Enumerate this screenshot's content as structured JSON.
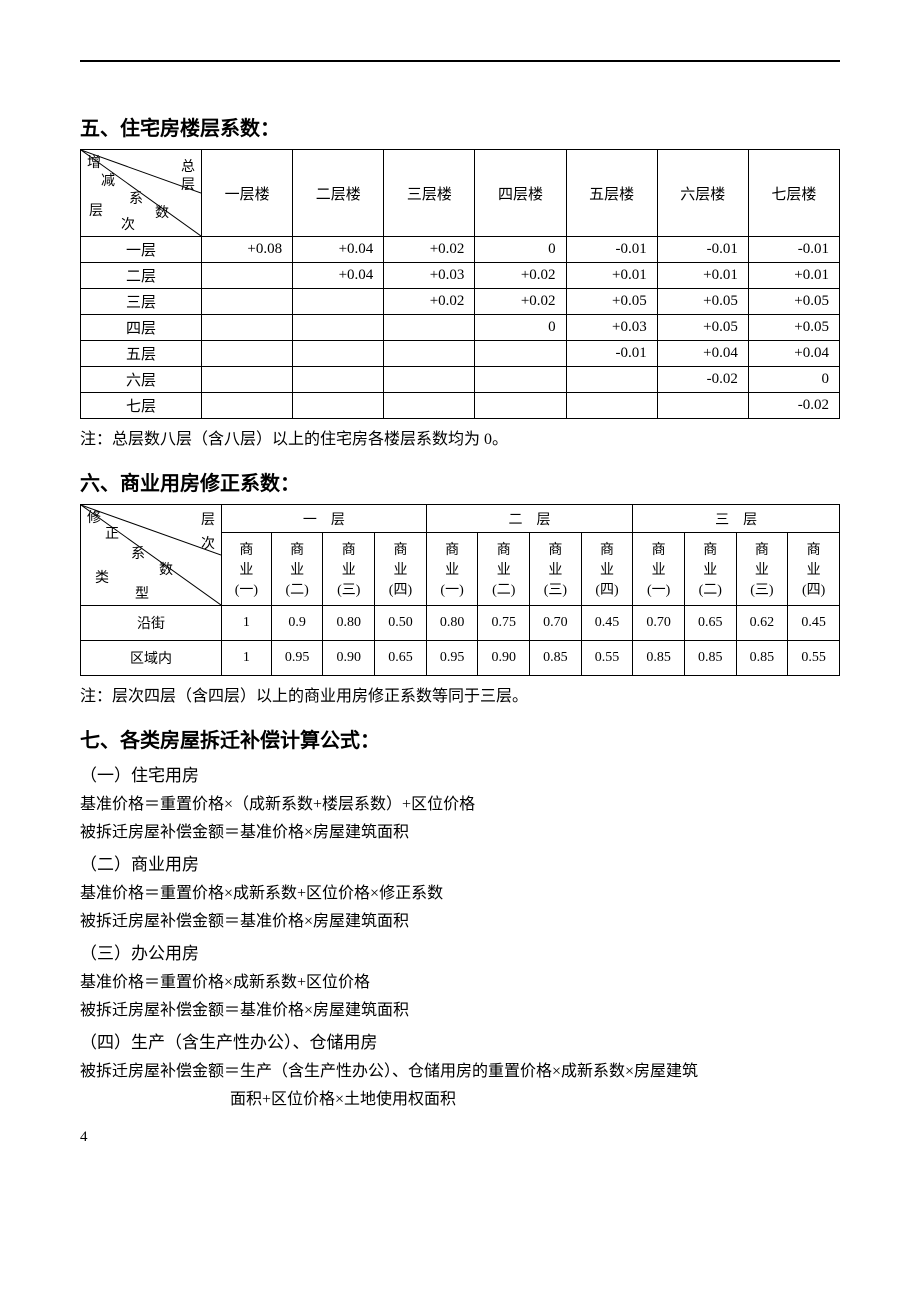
{
  "section5": {
    "title": "五、住宅房楼层系数：",
    "diag": {
      "a": "增减系数",
      "b": "总层数",
      "c": "层次"
    },
    "cols": [
      "一层楼",
      "二层楼",
      "三层楼",
      "四层楼",
      "五层楼",
      "六层楼",
      "七层楼"
    ],
    "rows": [
      {
        "label": "一层",
        "vals": [
          "+0.08",
          "+0.04",
          "+0.02",
          "0",
          "-0.01",
          "-0.01",
          "-0.01"
        ]
      },
      {
        "label": "二层",
        "vals": [
          "",
          "+0.04",
          "+0.03",
          "+0.02",
          "+0.01",
          "+0.01",
          "+0.01"
        ]
      },
      {
        "label": "三层",
        "vals": [
          "",
          "",
          "+0.02",
          "+0.02",
          "+0.05",
          "+0.05",
          "+0.05"
        ]
      },
      {
        "label": "四层",
        "vals": [
          "",
          "",
          "",
          "0",
          "+0.03",
          "+0.05",
          "+0.05"
        ]
      },
      {
        "label": "五层",
        "vals": [
          "",
          "",
          "",
          "",
          "-0.01",
          "+0.04",
          "+0.04"
        ]
      },
      {
        "label": "六层",
        "vals": [
          "",
          "",
          "",
          "",
          "",
          "-0.02",
          "0"
        ]
      },
      {
        "label": "七层",
        "vals": [
          "",
          "",
          "",
          "",
          "",
          "",
          "-0.02"
        ]
      }
    ],
    "note": "注：总层数八层（含八层）以上的住宅房各楼层系数均为 0。"
  },
  "section6": {
    "title": "六、商业用房修正系数：",
    "diag": {
      "a": "修正系数",
      "b": "层次",
      "c": "类型"
    },
    "topcols": [
      "一　层",
      "二　层",
      "三　层"
    ],
    "subcols": [
      "商业(一)",
      "商业(二)",
      "商业(三)",
      "商业(四)",
      "商业(一)",
      "商业(二)",
      "商业(三)",
      "商业(四)",
      "商业(一)",
      "商业(二)",
      "商业(三)",
      "商业(四)"
    ],
    "rows": [
      {
        "label": "沿街",
        "vals": [
          "1",
          "0.9",
          "0.80",
          "0.50",
          "0.80",
          "0.75",
          "0.70",
          "0.45",
          "0.70",
          "0.65",
          "0.62",
          "0.45"
        ]
      },
      {
        "label": "区域内",
        "vals": [
          "1",
          "0.95",
          "0.90",
          "0.65",
          "0.95",
          "0.90",
          "0.85",
          "0.55",
          "0.85",
          "0.85",
          "0.85",
          "0.55"
        ]
      }
    ],
    "note": "注：层次四层（含四层）以上的商业用房修正系数等同于三层。"
  },
  "section7": {
    "title": "七、各类房屋拆迁补偿计算公式：",
    "items": [
      {
        "sub": "（一）住宅用房",
        "lines": [
          "基准价格＝重置价格×（成新系数+楼层系数）+区位价格",
          "被拆迁房屋补偿金额＝基准价格×房屋建筑面积"
        ]
      },
      {
        "sub": "（二）商业用房",
        "lines": [
          "基准价格＝重置价格×成新系数+区位价格×修正系数",
          "被拆迁房屋补偿金额＝基准价格×房屋建筑面积"
        ]
      },
      {
        "sub": "（三）办公用房",
        "lines": [
          "基准价格＝重置价格×成新系数+区位价格",
          "被拆迁房屋补偿金额＝基准价格×房屋建筑面积"
        ]
      },
      {
        "sub": "（四）生产（含生产性办公）、仓储用房",
        "lines": [
          "被拆迁房屋补偿金额＝生产（含生产性办公）、仓储用房的重置价格×成新系数×房屋建筑"
        ],
        "indent_line": "面积+区位价格×土地使用权面积"
      }
    ]
  },
  "pagenum": "4"
}
